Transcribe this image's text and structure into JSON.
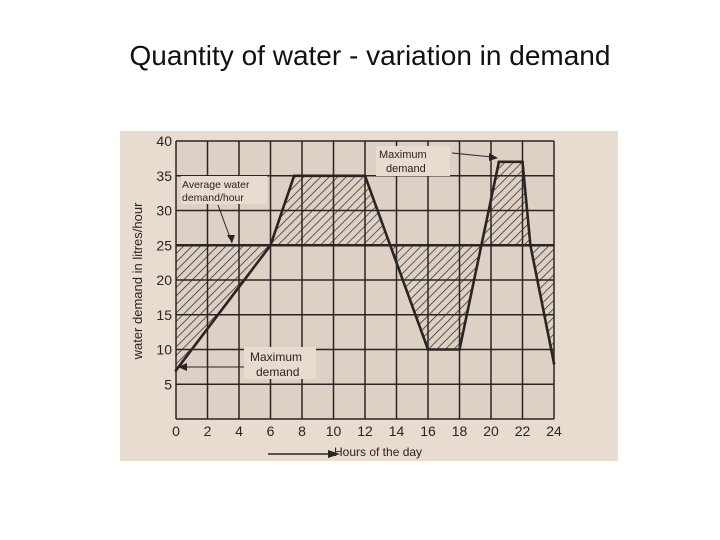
{
  "slide": {
    "title": "Quantity of water - variation in demand"
  },
  "colors": {
    "paper": "#e8dbd0",
    "ink": "#2a2422"
  },
  "chart_data": {
    "type": "line",
    "title": "",
    "xlabel": "Hours of the day",
    "ylabel": "water demand in litres/hour",
    "x_ticks": [
      0,
      2,
      4,
      6,
      8,
      10,
      12,
      14,
      16,
      18,
      20,
      22,
      24
    ],
    "x_tick_labels": [
      "0",
      "2",
      "4",
      "6",
      "8",
      "10",
      "12",
      "14",
      "16",
      "18",
      "20",
      "22",
      "24"
    ],
    "y_ticks": [
      5,
      10,
      15,
      20,
      25,
      30,
      35,
      40
    ],
    "y_tick_labels": [
      "5",
      "10",
      "15",
      "20",
      "25",
      "30",
      "35",
      "40"
    ],
    "xlim": [
      0,
      24
    ],
    "ylim": [
      0,
      40
    ],
    "grid": true,
    "series": [
      {
        "x": [
          0,
          6,
          7.5,
          12,
          16,
          18,
          20.5,
          22,
          22.5,
          24
        ],
        "values": [
          7,
          25,
          35,
          35,
          10,
          10,
          37,
          37,
          25,
          8
        ]
      }
    ],
    "average_demand": 25,
    "shaded_regions": true,
    "annotations": [
      {
        "text": "Average water demand/hour",
        "lines": [
          "Average water",
          "demand/hour"
        ]
      },
      {
        "text": "Maximum demand",
        "lines": [
          "Maximum",
          "demand"
        ],
        "position": "top"
      },
      {
        "text": "Maximum demand",
        "lines": [
          "Maximum",
          "demand"
        ],
        "position": "bottom"
      }
    ]
  }
}
